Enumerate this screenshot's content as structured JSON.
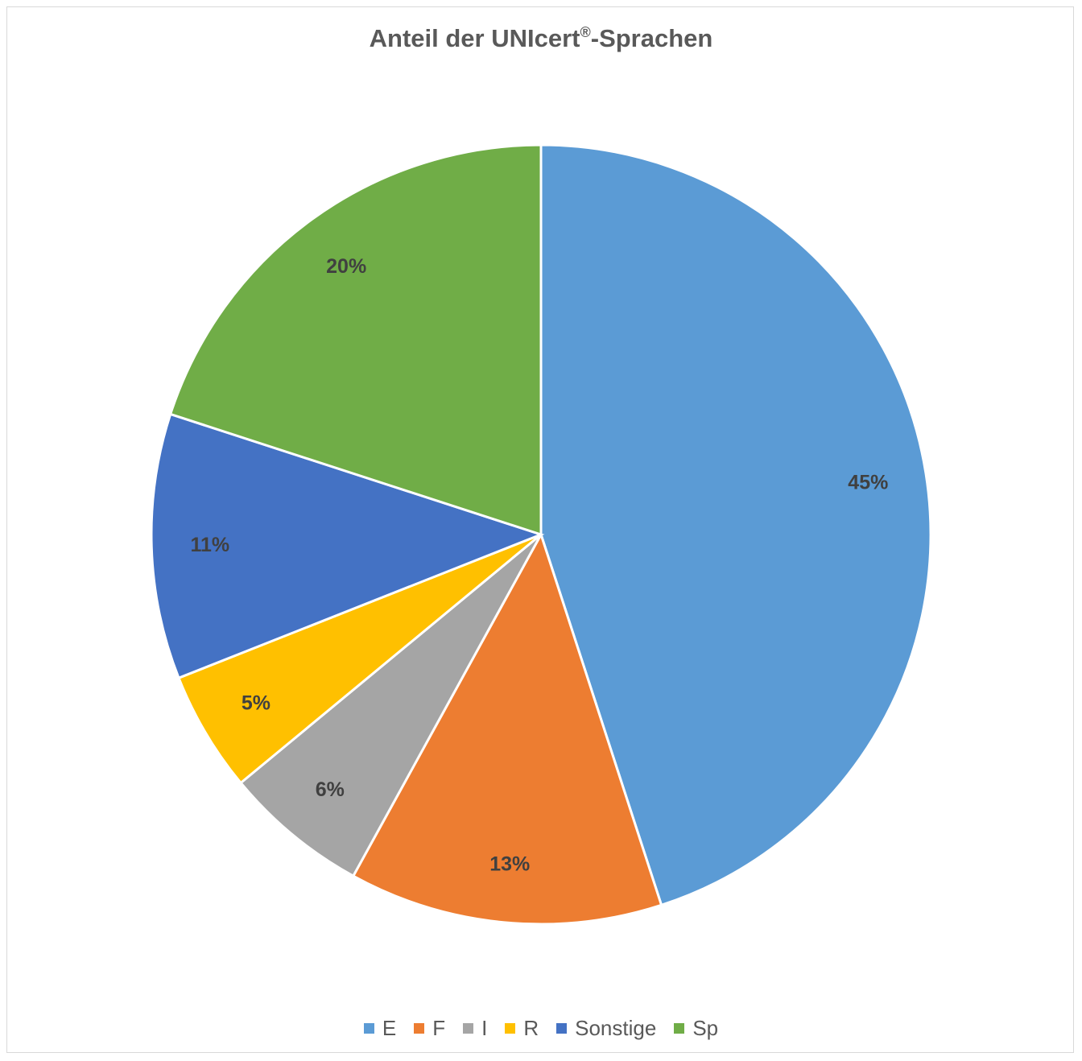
{
  "chart_data": {
    "type": "pie",
    "title_main": "Anteil der UNIcert",
    "title_sup": "®",
    "title_rest": "-Sprachen",
    "slices": [
      {
        "label": "E",
        "value": 45,
        "data_label": "45%",
        "color": "#5b9bd5"
      },
      {
        "label": "F",
        "value": 13,
        "data_label": "13%",
        "color": "#ed7d31"
      },
      {
        "label": "I",
        "value": 6,
        "data_label": "6%",
        "color": "#a5a5a5"
      },
      {
        "label": "R",
        "value": 5,
        "data_label": "5%",
        "color": "#ffc000"
      },
      {
        "label": "Sonstige",
        "value": 11,
        "data_label": "11%",
        "color": "#4472c4"
      },
      {
        "label": "Sp",
        "value": 20,
        "data_label": "20%",
        "color": "#70ad47"
      }
    ],
    "legend_position": "bottom",
    "start_angle_deg": 0,
    "direction": "clockwise"
  }
}
